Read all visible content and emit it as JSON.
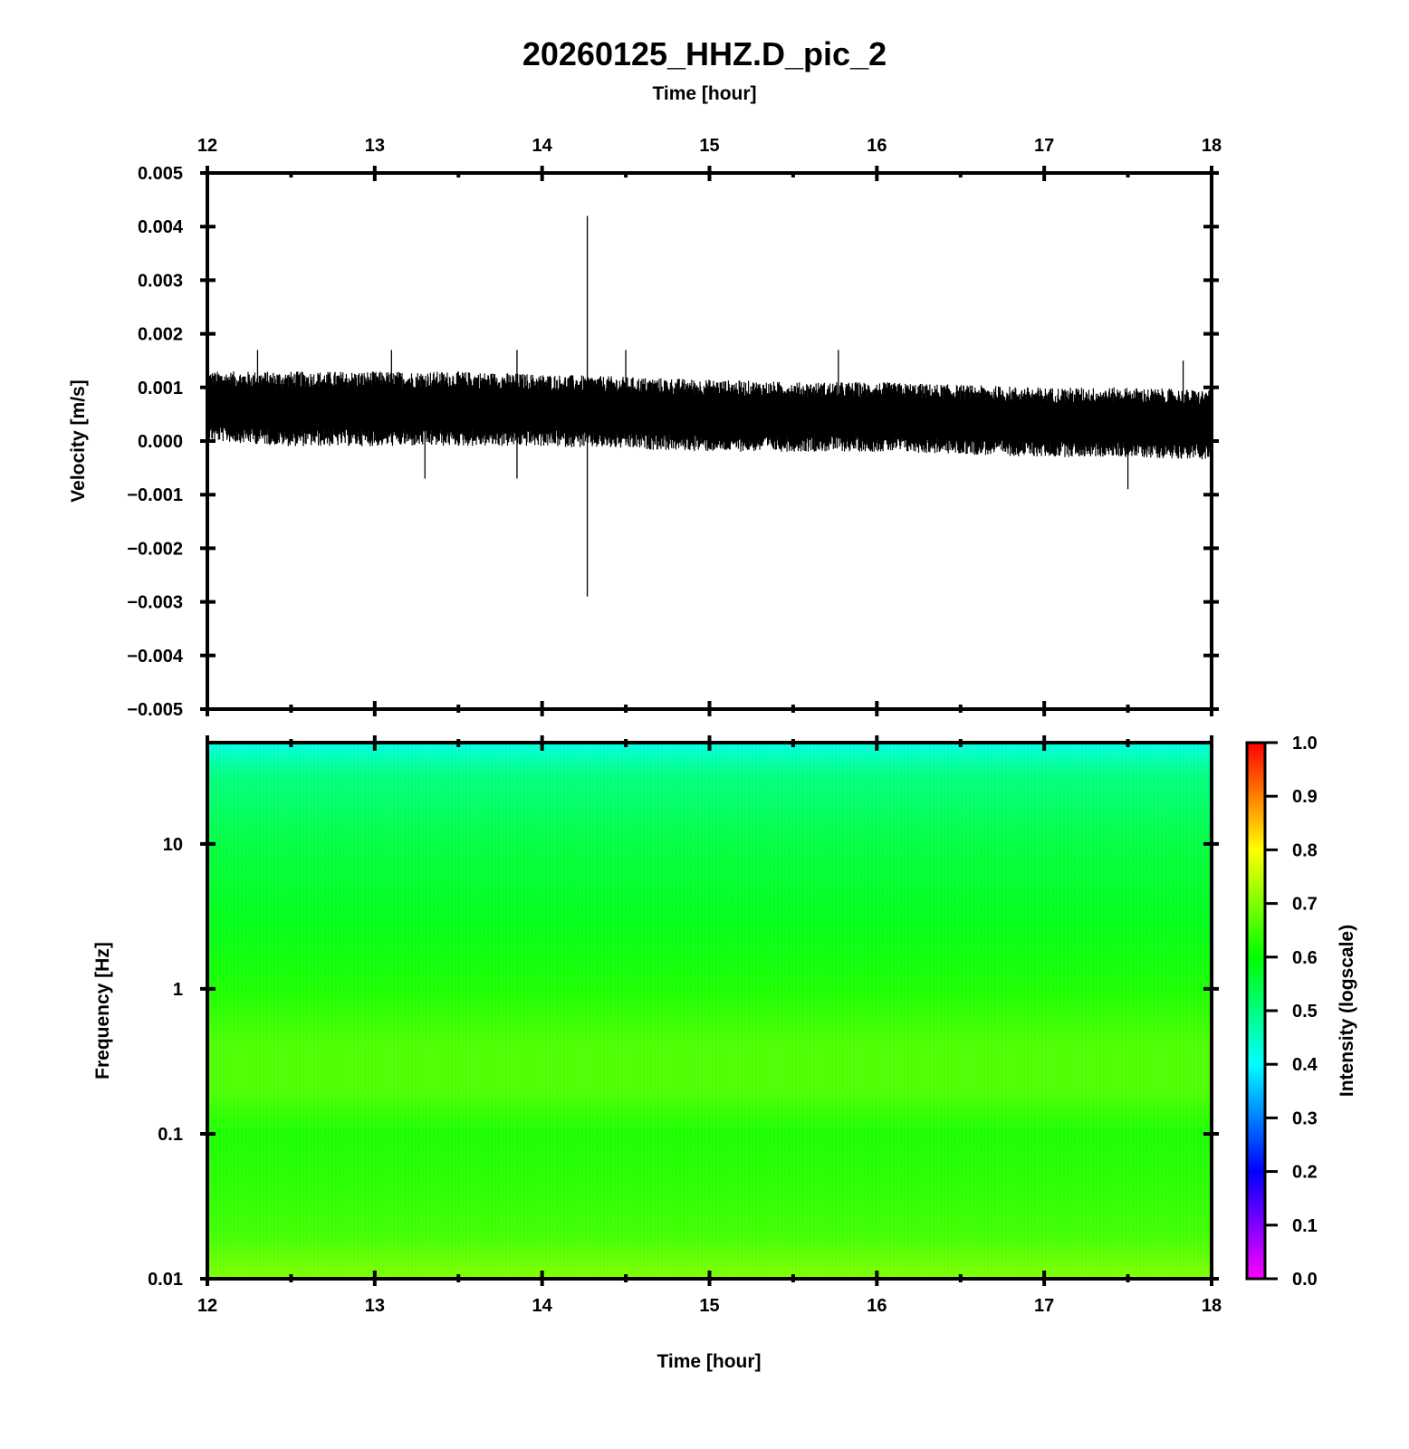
{
  "chart_data": [
    {
      "type": "line",
      "title": "20260125_HHZ.D_pic_2",
      "xlabel": "Time [hour]",
      "ylabel": "Velocity [m/s]",
      "xlim": [
        12,
        18
      ],
      "ylim": [
        -0.005,
        0.005
      ],
      "x_ticks": [
        12,
        13,
        14,
        15,
        16,
        17,
        18
      ],
      "x_tick_labels": [
        "12",
        "13",
        "14",
        "15",
        "16",
        "17",
        "18"
      ],
      "y_ticks": [
        -0.005,
        -0.004,
        -0.003,
        -0.002,
        -0.001,
        0.0,
        0.001,
        0.002,
        0.003,
        0.004,
        0.005
      ],
      "y_tick_labels": [
        "−0.005",
        "−0.004",
        "−0.003",
        "−0.002",
        "−0.001",
        "0.000",
        "0.001",
        "0.002",
        "0.003",
        "0.004",
        "0.005"
      ],
      "series": [
        {
          "color": "#000000",
          "envelope": {
            "x": [
              12.0,
              12.5,
              13.0,
              13.5,
              14.0,
              14.5,
              15.0,
              15.5,
              16.0,
              16.5,
              17.0,
              17.5,
              18.0
            ],
            "upper": [
              0.0013,
              0.0013,
              0.0013,
              0.0013,
              0.00125,
              0.0012,
              0.00115,
              0.0011,
              0.0011,
              0.00105,
              0.001,
              0.001,
              0.00095
            ],
            "lower": [
              0.0,
              -0.0001,
              -0.0001,
              -0.0001,
              -0.0001,
              -0.00015,
              -0.0002,
              -0.0002,
              -0.0002,
              -0.00025,
              -0.0003,
              -0.0003,
              -0.00035
            ]
          },
          "peaks": [
            {
              "x": 12.3,
              "y": 0.0017
            },
            {
              "x": 13.1,
              "y": 0.0017
            },
            {
              "x": 13.3,
              "y": -0.0007
            },
            {
              "x": 13.85,
              "y": 0.0017
            },
            {
              "x": 13.85,
              "y": -0.0007
            },
            {
              "x": 14.27,
              "y": 0.0042
            },
            {
              "x": 14.27,
              "y": -0.0029
            },
            {
              "x": 14.5,
              "y": 0.0017
            },
            {
              "x": 15.77,
              "y": 0.0017
            },
            {
              "x": 17.5,
              "y": -0.0009
            },
            {
              "x": 17.83,
              "y": 0.0015
            }
          ]
        }
      ]
    },
    {
      "type": "heatmap",
      "xlabel": "Time [hour]",
      "ylabel": "Frequency [Hz]",
      "colorbar_label": "Intensity (logscale)",
      "xlim": [
        12,
        18
      ],
      "ylim": [
        0.01,
        50
      ],
      "y_scale": "log",
      "x_ticks": [
        12,
        13,
        14,
        15,
        16,
        17,
        18
      ],
      "x_tick_labels": [
        "12",
        "13",
        "14",
        "15",
        "16",
        "17",
        "18"
      ],
      "y_ticks": [
        0.01,
        0.1,
        1,
        10
      ],
      "y_tick_labels": [
        "0.01",
        "0.1",
        "1",
        "10"
      ],
      "colorbar_ticks": [
        0.0,
        0.1,
        0.2,
        0.3,
        0.4,
        0.5,
        0.6,
        0.7,
        0.8,
        0.9,
        1.0
      ],
      "colorbar_tick_labels": [
        "0.0",
        "0.1",
        "0.2",
        "0.3",
        "0.4",
        "0.5",
        "0.6",
        "0.7",
        "0.8",
        "0.9",
        "1.0"
      ],
      "clim": [
        0,
        1
      ],
      "colormap": [
        "#ff00ff",
        "#0000ff",
        "#00ffff",
        "#00ff00",
        "#ffff00",
        "#ff0000"
      ],
      "intensity_profile": {
        "frequency": [
          0.01,
          0.02,
          0.05,
          0.1,
          0.2,
          0.4,
          1,
          3,
          10,
          30,
          50
        ],
        "intensity": [
          0.7,
          0.65,
          0.63,
          0.62,
          0.66,
          0.66,
          0.62,
          0.58,
          0.55,
          0.5,
          0.42
        ]
      }
    }
  ]
}
